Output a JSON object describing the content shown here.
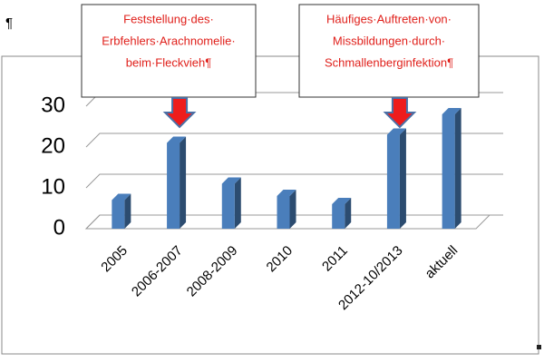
{
  "chart_data": {
    "type": "bar",
    "paragraph_mark": "¶",
    "categories": [
      "2005",
      "2006-2007",
      "2008-2009",
      "2010",
      "2011",
      "2012-10/2013",
      "aktuell"
    ],
    "values": [
      7,
      21,
      11,
      8,
      6,
      23,
      28
    ],
    "color": "#4a7ebb",
    "ylim": [
      0,
      30
    ],
    "yticks": [
      0,
      10,
      20,
      30
    ],
    "grid": true,
    "annotations": [
      {
        "lines": [
          "Feststellung·des·",
          "Erbfehlers·Arachnomelie·",
          "beim·Fleckvieh¶"
        ],
        "category": 1
      },
      {
        "lines": [
          "Häufiges·Auftreten·von·",
          "Missbildungen·durch·",
          "Schmallenberginfektion¶"
        ],
        "category": 5
      }
    ]
  }
}
